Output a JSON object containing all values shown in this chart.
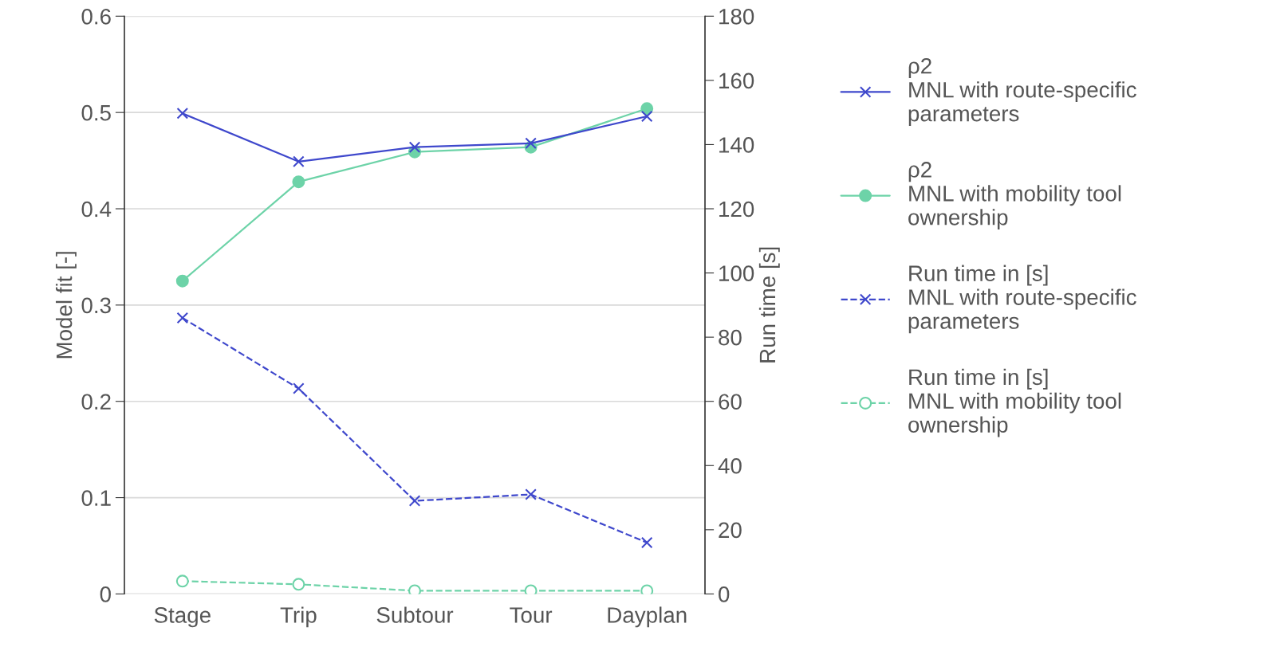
{
  "chart_data": {
    "type": "line",
    "categories": [
      "Stage",
      "Trip",
      "Subtour",
      "Tour",
      "Dayplan"
    ],
    "ylabel": "Model fit [-]",
    "y2label": "Run time [s]",
    "ylim": [
      0,
      0.6
    ],
    "yticks": [
      0,
      0.1,
      0.2,
      0.3,
      0.4,
      0.5,
      0.6
    ],
    "y2lim": [
      0,
      180
    ],
    "y2ticks": [
      0,
      20,
      40,
      60,
      80,
      100,
      120,
      140,
      160,
      180
    ],
    "grid": "y",
    "legend": "right",
    "series": [
      {
        "name": "ρ2\nMNL with route-specific\nparameters",
        "color": "#3f48cc",
        "values": [
          0.499,
          0.449,
          0.464,
          0.468,
          0.496
        ],
        "marker": "cross",
        "line_style": "solid"
      },
      {
        "name": "ρ2\nMNL with mobility tool\nownership",
        "color": "#6dd3a8",
        "values": [
          0.325,
          0.428,
          0.459,
          0.464,
          0.504
        ],
        "marker": "circle",
        "line_style": "solid"
      },
      {
        "name": "Run time in [s]\nMNL with route-specific\nparameters",
        "color": "#3f48cc",
        "values": [
          86,
          64,
          29,
          31,
          16
        ],
        "marker": "cross",
        "line_style": "dashed",
        "axis": "y2"
      },
      {
        "name": "Run time in [s]\nMNL with mobility tool\nownership",
        "color": "#6dd3a8",
        "values": [
          4,
          3,
          1,
          1,
          1
        ],
        "marker": "circle",
        "line_style": "dashed",
        "axis": "y2"
      }
    ]
  }
}
